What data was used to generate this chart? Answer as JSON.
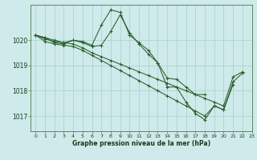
{
  "bg_color": "#ceeaea",
  "grid_color": "#aacece",
  "line_color": "#2a5f2a",
  "marker_color": "#2a5f2a",
  "xlabel": "Graphe pression niveau de la mer (hPa)",
  "xlim": [
    -0.5,
    23
  ],
  "ylim": [
    1016.4,
    1021.4
  ],
  "yticks": [
    1017,
    1018,
    1019,
    1020
  ],
  "xticks": [
    0,
    1,
    2,
    3,
    4,
    5,
    6,
    7,
    8,
    9,
    10,
    11,
    12,
    13,
    14,
    15,
    16,
    17,
    18,
    19,
    20,
    21,
    22,
    23
  ],
  "series": [
    {
      "x": [
        0,
        1,
        2,
        3,
        4,
        5,
        6,
        7,
        8,
        9,
        10,
        11,
        12,
        13,
        14,
        15,
        16,
        17,
        18,
        19,
        20,
        21
      ],
      "y": [
        1020.2,
        1020.1,
        1020.0,
        1019.9,
        1020.0,
        1019.95,
        1019.8,
        1020.6,
        1021.2,
        1021.1,
        1020.2,
        1019.9,
        1019.6,
        1019.1,
        1018.15,
        1018.15,
        1017.55,
        1017.1,
        1016.85,
        1017.4,
        1017.25,
        1018.25
      ]
    },
    {
      "x": [
        0,
        1,
        2,
        3,
        4,
        5,
        6,
        7,
        8,
        9,
        10,
        11,
        12,
        13,
        14,
        15,
        16,
        17,
        18
      ],
      "y": [
        1020.2,
        1020.1,
        1019.9,
        1019.85,
        1020.0,
        1019.9,
        1019.75,
        1019.8,
        1020.35,
        1021.0,
        1020.3,
        1019.85,
        1019.45,
        1019.1,
        1018.5,
        1018.45,
        1018.15,
        1017.85,
        1017.85
      ]
    },
    {
      "x": [
        0,
        1,
        2,
        3,
        4,
        5,
        6,
        7,
        8,
        9,
        10,
        11,
        12,
        13,
        14,
        15,
        16,
        17,
        18,
        19,
        20,
        21,
        22
      ],
      "y": [
        1020.2,
        1020.05,
        1019.95,
        1019.9,
        1019.85,
        1019.7,
        1019.5,
        1019.35,
        1019.2,
        1019.05,
        1018.9,
        1018.75,
        1018.6,
        1018.45,
        1018.3,
        1018.15,
        1018.0,
        1017.85,
        1017.7,
        1017.55,
        1017.4,
        1018.55,
        1018.75
      ]
    },
    {
      "x": [
        0,
        1,
        2,
        3,
        4,
        5,
        6,
        7,
        8,
        9,
        10,
        11,
        12,
        13,
        14,
        15,
        16,
        17,
        18,
        19,
        20,
        21,
        22
      ],
      "y": [
        1020.2,
        1019.95,
        1019.85,
        1019.8,
        1019.75,
        1019.6,
        1019.4,
        1019.2,
        1019.0,
        1018.8,
        1018.6,
        1018.4,
        1018.2,
        1018.0,
        1017.8,
        1017.6,
        1017.4,
        1017.2,
        1017.0,
        1017.4,
        1017.25,
        1018.35,
        1018.7
      ]
    }
  ]
}
